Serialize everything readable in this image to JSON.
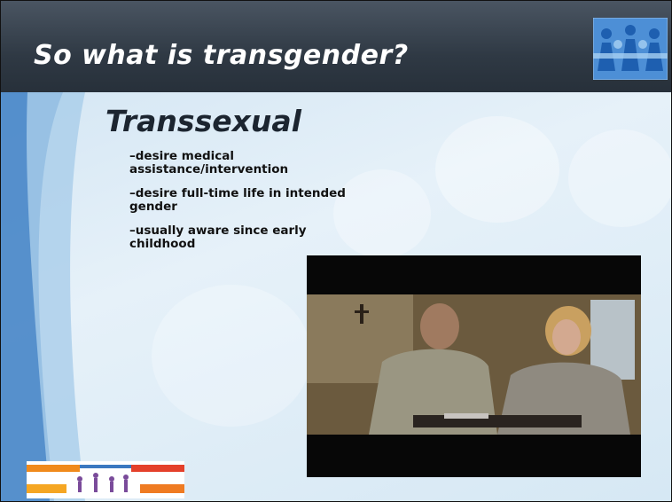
{
  "slide": {
    "title": "So what is transgender?",
    "heading": "Transsexual",
    "bullets": [
      "–desire medical assistance/intervention",
      "–desire full-time life in intended gender",
      "–usually aware since early childhood"
    ]
  }
}
